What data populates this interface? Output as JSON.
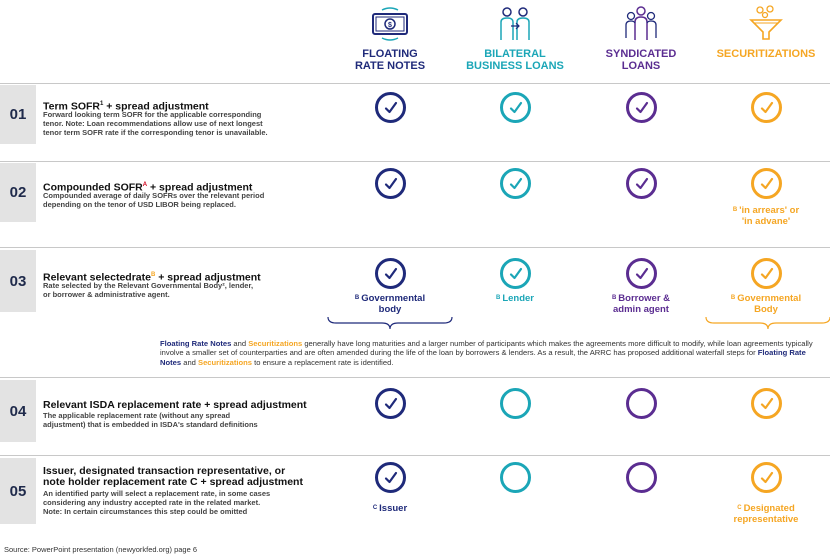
{
  "colors": {
    "navy": "#1f2a7a",
    "teal": "#1ba6b7",
    "purple": "#5b2d91",
    "orange": "#f5a623",
    "row_num_bg": "#e3e3e3"
  },
  "columns": [
    {
      "title_line1": "FLOATING",
      "title_line2": "RATE NOTES",
      "icon": "money-icon",
      "color": "#1f2a7a"
    },
    {
      "title_line1": "BILATERAL",
      "title_line2": "BUSINESS LOANS",
      "icon": "two-people-icon",
      "color": "#1ba6b7"
    },
    {
      "title_line1": "SYNDICATED",
      "title_line2": "LOANS",
      "icon": "group-icon",
      "color": "#5b2d91"
    },
    {
      "title_line1": "SECURITIZATIONS",
      "title_line2": "",
      "icon": "funnel-icon",
      "color": "#f5a623"
    }
  ],
  "rows": [
    {
      "num": "01",
      "title_a": "Term SOFR",
      "title_sup": "1",
      "title_b": " + spread adjustment",
      "desc": [
        "Forward looking term SOFR for the applicable corresponding",
        "tenor. Note: Loan recommendations allow use of next longest",
        "tenor term SOFR rate if the corresponding tenor is unavailable."
      ],
      "checks": [
        true,
        true,
        true,
        true
      ]
    },
    {
      "num": "02",
      "title_a": "Compounded SOFR",
      "title_sup": "A",
      "title_b": " + spread adjustment",
      "desc": [
        "Compounded average of daily SOFRs over the relevant period",
        "depending on the tenor of USD LIBOR being replaced."
      ],
      "checks": [
        true,
        true,
        true,
        true
      ],
      "notes": [
        null,
        null,
        null,
        {
          "mark": "B",
          "line1": "'in arrears' or",
          "line2": "'in advane'"
        }
      ]
    },
    {
      "num": "03",
      "title_a": "Relevant selectedrate",
      "title_sup": "B",
      "title_b": " + spread adjustment",
      "desc": [
        "Rate selected by the Relevant Governmental Body², lender,",
        "or borrower & administrative agent."
      ],
      "checks": [
        true,
        true,
        true,
        true
      ],
      "notes": [
        {
          "mark": "B",
          "line1": "Governmental",
          "line2": "body"
        },
        {
          "mark": "B",
          "line1": "Lender",
          "line2": ""
        },
        {
          "mark": "B",
          "line1": "Borrower &",
          "line2": "admin agent"
        },
        {
          "mark": "B",
          "line1": "Governmental",
          "line2": "Body"
        }
      ]
    },
    {
      "num": "04",
      "title_a": "Relevant ISDA replacement rate + spread adjustment",
      "title_sup": "",
      "title_b": "",
      "desc": [
        "The applicable replacement rate (without any spread",
        "adjustment) that is embedded in ISDA's standard definitions"
      ],
      "checks": [
        true,
        false,
        false,
        true
      ]
    },
    {
      "num": "05",
      "title_a": "Issuer, designated transaction representative, or",
      "title_a2": "note holder replacement rate C + spread adjustment",
      "title_sup": "",
      "title_b": "",
      "desc": [
        "An identified party will select a replacement rate, in some cases",
        "considering any industry accepted rate in the related market.",
        "Note: In certain circumstances this step could be omitted"
      ],
      "checks": [
        true,
        false,
        false,
        true
      ],
      "notes": [
        {
          "mark": "C",
          "line1": "Issuer",
          "line2": ""
        },
        null,
        null,
        {
          "mark": "C",
          "line1": "Designated",
          "line2": "representative"
        }
      ]
    }
  ],
  "paragraph": {
    "frn": "Floating Rate Notes",
    "and1": " and ",
    "sec": "Securitizations",
    "text1": " generally have long maturities and a larger number of participants which makes the agreements more difficult to modify, while loan agreements typically involve a smaller set of counterparties and are often amended during the life of the loan by borrowers & lenders. As a result, the ARRC has proposed additional waterfall steps for ",
    "frn2": "Floating Rate Notes",
    "and2": " and ",
    "sec2": "Securitizations",
    "text2": " to ensure a replacement rate is identified."
  },
  "source": "Source: PowerPoint presentation (newyorkfed.org) page 6"
}
